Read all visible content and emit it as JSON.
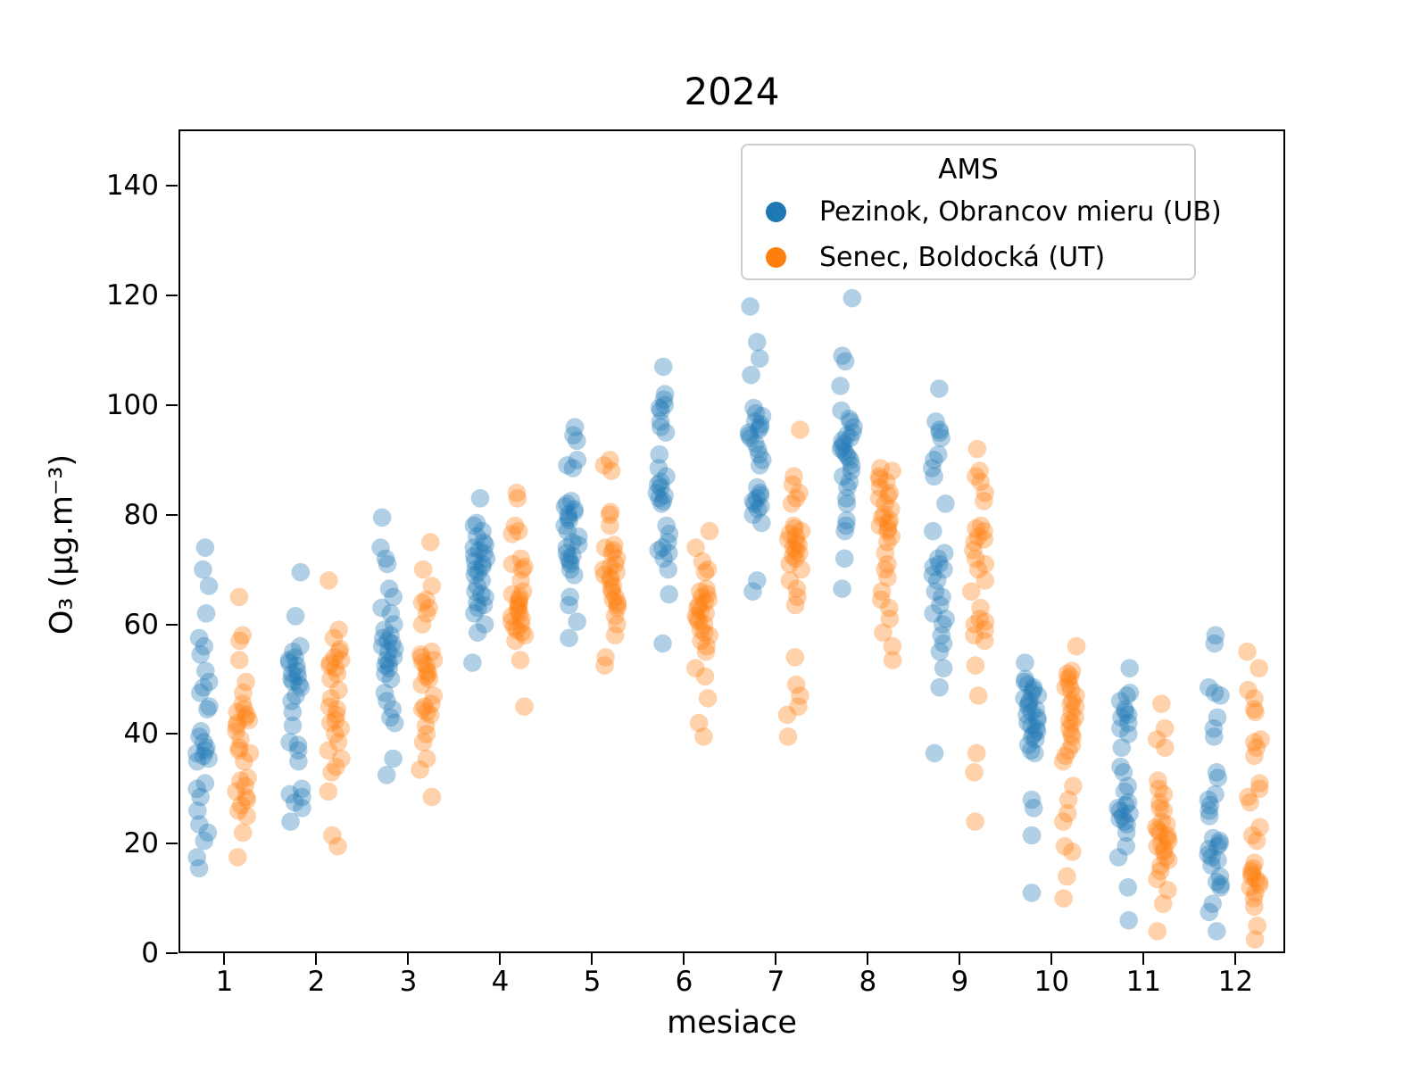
{
  "figure": {
    "title": "2024"
  },
  "chart_data": {
    "type": "scatter",
    "variant": "strip-plot-jittered",
    "title": "2024",
    "xlabel": "mesiace",
    "ylabel": "O₃  (μg.m⁻³)",
    "xlim": [
      0.5,
      12.54
    ],
    "ylim": [
      0,
      150.3
    ],
    "xticks": [
      1,
      2,
      3,
      4,
      5,
      6,
      7,
      8,
      9,
      10,
      11,
      12
    ],
    "yticks": [
      0,
      20,
      40,
      60,
      80,
      100,
      120,
      140
    ],
    "grid": false,
    "legend_title": "AMS",
    "legend_position": "upper right",
    "marker_alpha": 0.35,
    "marker_radius_px": 10.3,
    "jitter_halfwidth_x": 0.078,
    "series": [
      {
        "name": "Pezinok, Obrancov mieru (UB)",
        "color": "#1f77b4",
        "x_offset": -0.225,
        "months": [
          [
            74,
            70,
            67,
            62,
            57.5,
            56,
            54.5,
            51.5,
            49.5,
            48.5,
            47.5,
            45,
            44.5,
            40.5,
            39.5,
            38.5,
            37.5,
            37,
            36.5,
            36,
            35.5,
            35,
            31,
            30,
            28.5,
            26,
            23.5,
            22,
            20.5,
            17.5,
            15.5
          ],
          [
            69.5,
            61.5,
            56,
            55,
            54,
            53.5,
            53,
            52.5,
            51.5,
            51,
            50.5,
            50,
            49.5,
            49,
            48.5,
            47,
            46,
            44,
            41.5,
            38.5,
            38,
            37,
            35,
            30,
            29,
            28.5,
            27.5,
            26.5,
            24
          ],
          [
            79.5,
            74,
            72,
            71,
            66.5,
            65,
            63,
            62,
            60,
            59,
            58,
            57.5,
            57,
            56.5,
            56,
            55.5,
            55,
            54,
            53.5,
            53,
            52.5,
            52,
            51,
            50,
            47.5,
            46,
            44.5,
            43,
            42,
            35.5,
            32.5
          ],
          [
            83,
            78.5,
            78,
            77,
            76,
            75,
            74.5,
            74,
            73.5,
            73,
            72.5,
            72,
            71.5,
            71,
            70.5,
            70,
            69.5,
            69,
            68,
            67,
            66,
            65.5,
            65,
            64,
            63.5,
            63,
            62,
            60,
            58.5,
            53
          ],
          [
            96,
            94.5,
            93.5,
            90,
            89,
            88.5,
            82.5,
            82,
            81.5,
            81,
            80.5,
            80,
            79.5,
            79,
            78,
            77,
            76,
            75,
            74.5,
            74,
            73,
            72.5,
            72,
            71.5,
            71,
            70,
            69,
            65,
            63.5,
            60.5,
            57.5
          ],
          [
            107,
            102,
            101,
            100,
            99.5,
            99,
            97,
            96,
            95,
            91,
            88.5,
            87,
            86,
            85.5,
            85,
            84,
            83.5,
            83,
            82.5,
            82,
            78,
            76.5,
            75,
            74,
            73.5,
            73,
            72,
            70,
            65.5,
            56.5
          ],
          [
            118,
            111.5,
            108.5,
            105.5,
            99.5,
            98.5,
            98,
            97,
            96.5,
            96,
            95.5,
            95,
            94.5,
            94,
            93,
            92,
            91,
            90,
            89,
            85,
            84,
            83.5,
            83,
            82.5,
            82,
            81.5,
            81,
            80,
            78.5,
            68,
            66
          ],
          [
            119.5,
            109,
            108,
            103.5,
            99,
            97.5,
            97,
            96,
            95,
            94.5,
            94,
            93.5,
            93,
            92.5,
            92,
            91.5,
            91,
            90.5,
            90,
            89,
            88,
            87,
            86,
            85,
            83,
            82,
            79,
            78,
            77,
            72,
            66.5
          ],
          [
            103,
            97,
            95.5,
            95,
            94,
            91,
            90,
            88.5,
            87,
            82,
            77,
            73,
            72,
            71,
            70.5,
            70,
            69,
            68,
            66,
            65,
            63.5,
            62,
            61,
            60,
            58,
            56.5,
            55,
            52,
            48.5,
            36.5
          ],
          [
            53,
            50,
            49.5,
            49,
            48.5,
            48,
            47.5,
            47,
            46.5,
            46,
            45.5,
            45,
            44.5,
            44,
            43.5,
            43,
            42.5,
            42,
            41.5,
            41,
            40.5,
            40,
            39.5,
            39,
            38,
            37,
            36.5,
            28,
            26.5,
            21.5,
            11
          ],
          [
            52,
            47.5,
            47,
            46,
            44.5,
            44,
            43.5,
            43,
            42,
            41,
            40,
            37.5,
            34,
            33,
            30.5,
            29.5,
            27.5,
            27,
            26.5,
            26,
            25.5,
            25,
            24.5,
            24,
            23.5,
            22,
            19.5,
            17.5,
            12,
            6
          ],
          [
            58,
            56.5,
            48.5,
            47.5,
            47,
            43,
            41,
            39.5,
            33,
            32,
            29,
            28,
            27,
            26,
            25,
            21,
            20.5,
            20,
            19.5,
            19,
            18,
            17.5,
            17,
            16,
            14,
            13,
            12.5,
            12,
            9,
            7.5,
            4
          ]
        ]
      },
      {
        "name": "Senec, Boldocká (UT)",
        "color": "#ff7f0e",
        "x_offset": 0.2,
        "months": [
          [
            65,
            58,
            57,
            53.5,
            49.5,
            47.5,
            45.5,
            44.5,
            44,
            43.5,
            43,
            42.5,
            42,
            41.5,
            40.5,
            39,
            37.5,
            37,
            36.5,
            35,
            32,
            31.5,
            30.5,
            29.5,
            28.5,
            28,
            27,
            26,
            25,
            22,
            17.5
          ],
          [
            68,
            59,
            57.5,
            55.5,
            55,
            54,
            53.5,
            53,
            52.5,
            52,
            51,
            50,
            48,
            46.5,
            45,
            44.5,
            43.5,
            42.5,
            42,
            41,
            40,
            38.5,
            37,
            35.5,
            34,
            33,
            29.5,
            21.5,
            19.5
          ],
          [
            75,
            70,
            67,
            64.5,
            64,
            63,
            62,
            60,
            55,
            54.5,
            54,
            53.5,
            53,
            52.5,
            51.5,
            51,
            50.5,
            50,
            49,
            47,
            45.5,
            45,
            44.5,
            44,
            43.5,
            41.5,
            40,
            38.5,
            35.5,
            33.5,
            28.5
          ],
          [
            84,
            83,
            78,
            77,
            76.5,
            72,
            71,
            70.5,
            70,
            68,
            66,
            65.5,
            65,
            64.5,
            64,
            63.5,
            63,
            62.5,
            62,
            61.5,
            61,
            60.5,
            60,
            59.5,
            59,
            58.5,
            58,
            57,
            53.5,
            45
          ],
          [
            90,
            89,
            88,
            80.5,
            80,
            78,
            74.5,
            74,
            73.5,
            73,
            72,
            71,
            70.5,
            70,
            69.5,
            69,
            68.5,
            68,
            67,
            66.5,
            66,
            65,
            64.5,
            64,
            63.5,
            63,
            61.5,
            60,
            58,
            54,
            52.5
          ],
          [
            77,
            74,
            71.5,
            70,
            69.5,
            66.5,
            66,
            65.5,
            65,
            64.5,
            64,
            63.5,
            63,
            62.5,
            62,
            61.5,
            61,
            60.5,
            60,
            59,
            58.5,
            58,
            57,
            56,
            55,
            52,
            50.5,
            46.5,
            42,
            39.5
          ],
          [
            95.5,
            87,
            85.5,
            84,
            83,
            82,
            78,
            77.5,
            77,
            76.5,
            76,
            75.5,
            75,
            74.5,
            74,
            73.5,
            73,
            72.5,
            72,
            71,
            70,
            68,
            66.5,
            65,
            63.5,
            54,
            49,
            47,
            45,
            43.5,
            39.5
          ],
          [
            88.5,
            88,
            87,
            86.5,
            86,
            85,
            84,
            83.5,
            83,
            82,
            81,
            80,
            79.5,
            79,
            78.5,
            78,
            77.5,
            77,
            76,
            75,
            73,
            71,
            70,
            68.5,
            66,
            64.5,
            63,
            61,
            58.5,
            56,
            53.5
          ],
          [
            92,
            88,
            87,
            86,
            84,
            82.5,
            78,
            77.5,
            77,
            76,
            75.5,
            75,
            73.5,
            72,
            71,
            70,
            68,
            66,
            63,
            61,
            60.5,
            60,
            59,
            58,
            57,
            52.5,
            47,
            36.5,
            33,
            24
          ],
          [
            56,
            51.5,
            51,
            50.5,
            50,
            49,
            48.5,
            48,
            47,
            46,
            45.5,
            45,
            44,
            43,
            42.5,
            42,
            41,
            40,
            39.5,
            38,
            37,
            36,
            35,
            30.5,
            28,
            25.5,
            24,
            19.5,
            18.5,
            14,
            10
          ],
          [
            45.5,
            41,
            39,
            37.5,
            31.5,
            30,
            29,
            27.5,
            26.5,
            26,
            24,
            23.5,
            23,
            22.5,
            22,
            21.5,
            21,
            20.5,
            20,
            19.5,
            19,
            18.5,
            17.5,
            17,
            16,
            15,
            13.5,
            11.5,
            9,
            4
          ],
          [
            55,
            52,
            48,
            46.5,
            44.5,
            44,
            39,
            38.5,
            37.5,
            36,
            31,
            30,
            28.5,
            27.5,
            23,
            21.5,
            20.5,
            16.5,
            15.5,
            15,
            14.5,
            14,
            13.5,
            13,
            12.5,
            12,
            11,
            10,
            8.5,
            5,
            2.5
          ]
        ]
      }
    ]
  },
  "legend": {
    "title": "AMS",
    "entries": [
      {
        "label": "Pezinok, Obrancov mieru (UB)",
        "color": "#1f77b4"
      },
      {
        "label": "Senec, Boldocká (UT)",
        "color": "#ff7f0e"
      }
    ]
  }
}
